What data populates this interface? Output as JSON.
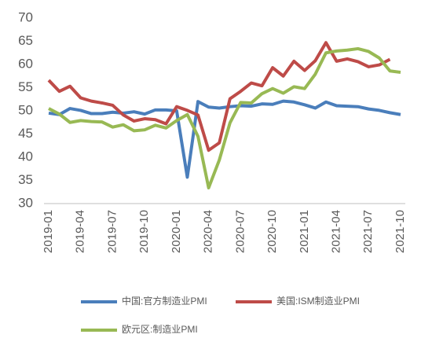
{
  "chart_data": {
    "type": "line",
    "categories": [
      "2019-01",
      null,
      null,
      "2019-04",
      null,
      null,
      "2019-07",
      null,
      null,
      "2019-10",
      null,
      null,
      "2020-01",
      null,
      null,
      "2020-04",
      null,
      null,
      "2020-07",
      null,
      null,
      "2020-10",
      null,
      null,
      "2021-01",
      null,
      null,
      "2021-04",
      null,
      null,
      "2021-07",
      null,
      null,
      "2021-10"
    ],
    "series": [
      {
        "name": "中国:官方制造业PMI",
        "color": "#4a7ebb",
        "values": [
          49.5,
          49.2,
          50.5,
          50.1,
          49.4,
          49.4,
          49.7,
          49.5,
          49.8,
          49.3,
          50.2,
          50.2,
          50.0,
          35.7,
          52.0,
          50.8,
          50.6,
          50.9,
          51.1,
          51.0,
          51.5,
          51.4,
          52.1,
          51.9,
          51.3,
          50.6,
          51.9,
          51.1,
          51.0,
          50.9,
          50.4,
          50.1,
          49.6,
          49.2
        ]
      },
      {
        "name": "美国:ISM制造业PMI",
        "color": "#be4b48",
        "values": [
          56.6,
          54.2,
          55.3,
          52.8,
          52.1,
          51.7,
          51.2,
          49.1,
          47.8,
          48.3,
          48.1,
          47.2,
          50.9,
          50.1,
          49.1,
          41.5,
          43.1,
          52.6,
          54.2,
          56.0,
          55.4,
          59.3,
          57.5,
          60.7,
          58.7,
          60.8,
          64.7,
          60.7,
          61.2,
          60.6,
          59.5,
          59.9,
          61.1,
          null
        ]
      },
      {
        "name": "欧元区:制造业PMI",
        "color": "#98b954",
        "values": [
          50.5,
          49.3,
          47.5,
          47.9,
          47.7,
          47.6,
          46.5,
          47.0,
          45.7,
          45.9,
          46.9,
          46.3,
          47.9,
          49.2,
          44.5,
          33.4,
          39.4,
          47.4,
          51.8,
          51.7,
          53.7,
          54.8,
          53.8,
          55.2,
          54.8,
          57.9,
          62.5,
          62.9,
          63.1,
          63.4,
          62.8,
          61.4,
          58.6,
          58.3
        ]
      }
    ],
    "ylim": [
      30,
      70
    ],
    "yticks": [
      30,
      35,
      40,
      45,
      50,
      55,
      60,
      65,
      70
    ],
    "grid": false
  }
}
